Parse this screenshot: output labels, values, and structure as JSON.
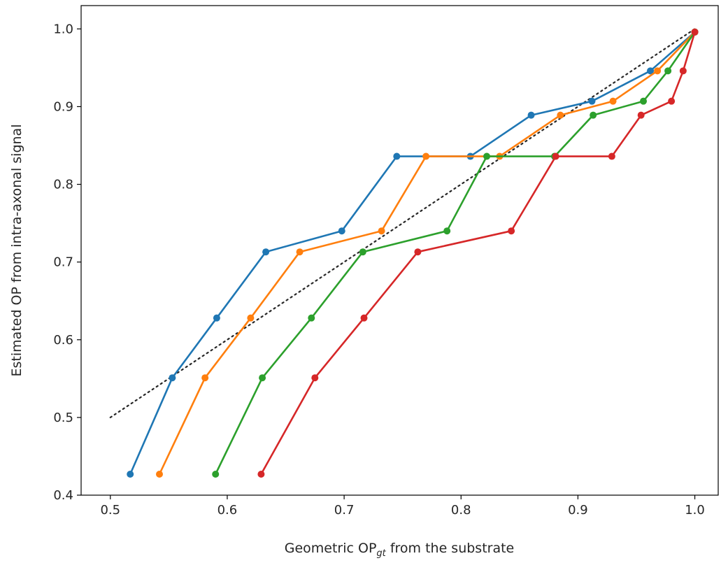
{
  "chart_data": {
    "type": "line",
    "xlabel": {
      "prefix": "Geometric OP",
      "subscript": "gt",
      "suffix": " from the substrate"
    },
    "ylabel": "Estimated OP from intra-axonal signal",
    "xlim": [
      0.475,
      1.02
    ],
    "ylim": [
      0.4,
      1.03
    ],
    "xticks": [
      0.5,
      0.6,
      0.7,
      0.8,
      0.9,
      1.0
    ],
    "yticks": [
      0.4,
      0.5,
      0.6,
      0.7,
      0.8,
      0.9,
      1.0
    ],
    "xtick_labels": [
      "0.5",
      "0.6",
      "0.7",
      "0.8",
      "0.9",
      "1.0"
    ],
    "ytick_labels": [
      "0.4",
      "0.5",
      "0.6",
      "0.7",
      "0.8",
      "0.9",
      "1.0"
    ],
    "grid": false,
    "reference_line": {
      "x": [
        0.5,
        1.0
      ],
      "y": [
        0.5,
        1.0
      ],
      "color": "#262626",
      "style": "dotted"
    },
    "series": [
      {
        "color": "#1f77b4",
        "x": [
          0.517,
          0.553,
          0.591,
          0.633,
          0.698,
          0.745,
          0.808,
          0.86,
          0.912,
          0.962,
          1.0
        ],
        "y": [
          0.427,
          0.551,
          0.628,
          0.713,
          0.74,
          0.836,
          0.836,
          0.889,
          0.907,
          0.946,
          0.996
        ]
      },
      {
        "color": "#ff7f0e",
        "x": [
          0.542,
          0.581,
          0.62,
          0.662,
          0.732,
          0.77,
          0.833,
          0.885,
          0.93,
          0.968,
          1.0
        ],
        "y": [
          0.427,
          0.551,
          0.628,
          0.713,
          0.74,
          0.836,
          0.836,
          0.889,
          0.907,
          0.946,
          0.996
        ]
      },
      {
        "color": "#2ca02c",
        "x": [
          0.59,
          0.63,
          0.672,
          0.716,
          0.788,
          0.822,
          0.88,
          0.913,
          0.956,
          0.977,
          1.0
        ],
        "y": [
          0.427,
          0.551,
          0.628,
          0.713,
          0.74,
          0.836,
          0.836,
          0.889,
          0.907,
          0.946,
          0.996
        ]
      },
      {
        "color": "#d62728",
        "x": [
          0.629,
          0.675,
          0.717,
          0.763,
          0.843,
          0.881,
          0.929,
          0.954,
          0.98,
          0.99,
          1.0
        ],
        "y": [
          0.427,
          0.551,
          0.628,
          0.713,
          0.74,
          0.836,
          0.836,
          0.889,
          0.907,
          0.946,
          0.996
        ]
      }
    ]
  }
}
